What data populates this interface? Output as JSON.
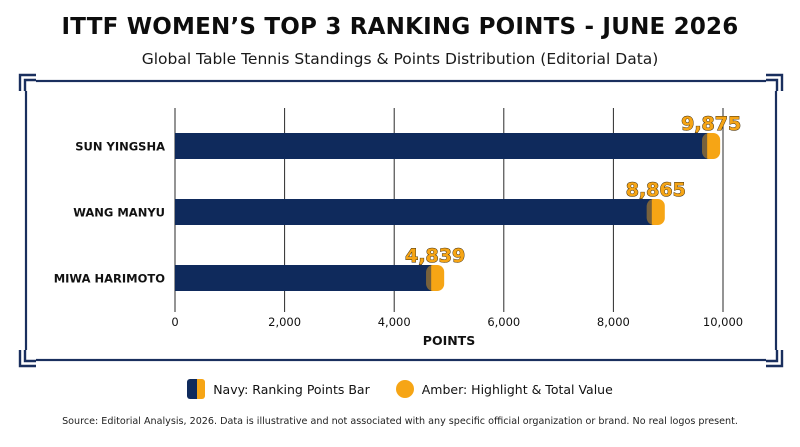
{
  "header": {
    "title": "ITTF WOMEN’S TOP 3 RANKING POINTS - JUNE 2026",
    "subtitle": "Global Table Tennis Standings & Points Distribution (Editorial Data)"
  },
  "legend": {
    "navy_label": "Navy: Ranking Points Bar",
    "amber_label": "Amber: Highlight & Total Value"
  },
  "footer": {
    "source": "Source: Editorial Analysis, 2026. Data is illustrative and not associated with any specific official organization or brand. No real logos present."
  },
  "colors": {
    "navy": "#0f2a5c",
    "amber": "#f6a515",
    "grid": "#2a2a2a",
    "frame": "#1a2f5e"
  },
  "chart_data": {
    "type": "bar",
    "orientation": "horizontal",
    "categories": [
      "SUN YINGSHA",
      "WANG MANYU",
      "MIWA HARIMOTO"
    ],
    "values": [
      9875,
      8865,
      4839
    ],
    "value_labels": [
      "9,875",
      "8,865",
      "4,839"
    ],
    "xlabel": "POINTS",
    "ylabel": "",
    "xlim": [
      0,
      10000
    ],
    "x_ticks": [
      0,
      2000,
      4000,
      6000,
      8000,
      10000
    ],
    "x_tick_labels": [
      "0",
      "2,000",
      "4,000",
      "6,000",
      "8,000",
      "10,000"
    ],
    "grid": true
  }
}
